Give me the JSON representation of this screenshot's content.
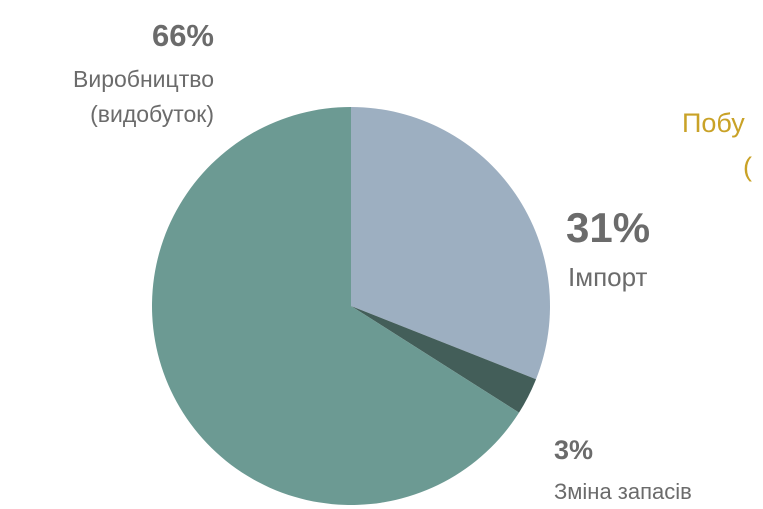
{
  "chart_data": {
    "type": "pie",
    "start_angle_deg": 0,
    "direction": "clockwise",
    "slices": [
      {
        "label": "Імпорт",
        "value": 31,
        "value_label": "31%",
        "color": "#9dafc1"
      },
      {
        "label": "Зміна запасів",
        "value": 3,
        "value_label": "3%",
        "color": "#435e59"
      },
      {
        "label": "Виробництво (видобуток)",
        "label_lines": [
          "Виробництво",
          "(видобуток)"
        ],
        "value": 66,
        "value_label": "66%",
        "color": "#6c9a93"
      }
    ]
  },
  "cropped_text": [
    "Побу",
    "("
  ]
}
